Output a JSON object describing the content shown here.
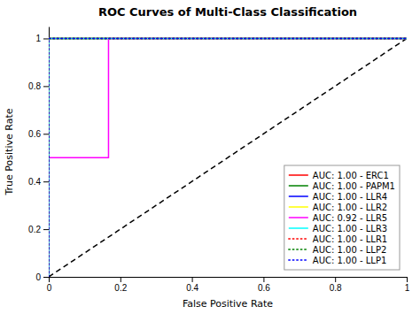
{
  "chart_data": {
    "type": "line",
    "title": "ROC Curves of Multi-Class Classification",
    "xlabel": "False Positive Rate",
    "ylabel": "True Positive Rate",
    "xlim": [
      0.0,
      1.0
    ],
    "ylim": [
      0.0,
      1.05
    ],
    "xticks": [
      0,
      0.2,
      0.4,
      0.6,
      0.8,
      1
    ],
    "yticks": [
      0,
      0.2,
      0.4,
      0.6,
      0.8,
      1
    ],
    "grid": false,
    "legend": "lower right",
    "series": [
      {
        "color": "#000000",
        "line_style": "dashed",
        "x": [
          0,
          1
        ],
        "values": [
          0,
          1
        ]
      },
      {
        "name": "AUC: 1.00 - ERC1",
        "color": "#ff0000",
        "line_style": "solid",
        "x": [
          0.0,
          0.0,
          1.0
        ],
        "values": [
          0.0,
          1.0,
          1.0
        ]
      },
      {
        "name": "AUC: 1.00 - PAPM1",
        "color": "#008000",
        "line_style": "solid",
        "x": [
          0.0,
          0.0,
          1.0
        ],
        "values": [
          0.0,
          1.0,
          1.0
        ]
      },
      {
        "name": "AUC: 1.00 - LLR4",
        "color": "#0000ff",
        "line_style": "solid",
        "x": [
          0.0,
          0.0,
          1.0
        ],
        "values": [
          0.0,
          1.0,
          1.0
        ]
      },
      {
        "name": "AUC: 1.00 - LLR2",
        "color": "#ffff00",
        "line_style": "solid",
        "x": [
          0.0,
          0.0,
          1.0
        ],
        "values": [
          0.0,
          1.0,
          1.0
        ]
      },
      {
        "name": "AUC: 0.92 - LLR5",
        "color": "#ff00ff",
        "line_style": "solid",
        "x": [
          0.0,
          0.0,
          0.167,
          0.167,
          1.0
        ],
        "values": [
          0.0,
          0.5,
          0.5,
          1.0,
          1.0
        ]
      },
      {
        "name": "AUC: 1.00 - LLR3",
        "color": "#00ffff",
        "line_style": "solid",
        "x": [
          0.0,
          0.0,
          1.0
        ],
        "values": [
          0.0,
          1.0,
          1.0
        ]
      },
      {
        "name": "AUC: 1.00 - LLR1",
        "color": "#ff0000",
        "line_style": "dotted",
        "x": [
          0.0,
          0.0,
          1.0
        ],
        "values": [
          0.0,
          1.0,
          1.0
        ]
      },
      {
        "name": "AUC: 1.00 - LLP2",
        "color": "#008000",
        "line_style": "dotted",
        "x": [
          0.0,
          0.0,
          1.0
        ],
        "values": [
          0.0,
          1.0,
          1.0
        ]
      },
      {
        "name": "AUC: 1.00 - LLP1",
        "color": "#0000ff",
        "line_style": "dotted",
        "x": [
          0.0,
          0.0,
          1.0
        ],
        "values": [
          0.0,
          1.0,
          1.0
        ]
      }
    ]
  }
}
